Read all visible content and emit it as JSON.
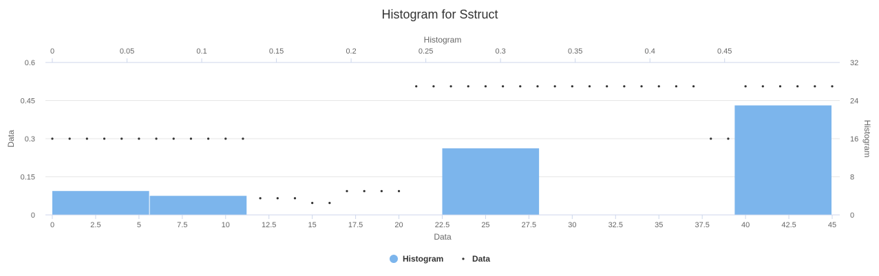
{
  "chart_data": {
    "title": "Histogram for Sstruct",
    "colors": {
      "histogram": "#7cb5ec",
      "data": "#333333"
    },
    "legend_placement": "bottom-center",
    "grid": true,
    "bottom_x": {
      "title": "Data",
      "range": [
        0,
        45
      ],
      "ticks": [
        0,
        2.5,
        5,
        7.5,
        10,
        12.5,
        15,
        17.5,
        20,
        22.5,
        25,
        27.5,
        30,
        32.5,
        35,
        37.5,
        40,
        42.5,
        45
      ],
      "tick_labels": [
        "0",
        "2.5",
        "5",
        "7.5",
        "10",
        "12.5",
        "15",
        "17.5",
        "20",
        "22.5",
        "25",
        "27.5",
        "30",
        "32.5",
        "35",
        "37.5",
        "40",
        "42.5",
        "45"
      ]
    },
    "top_x": {
      "title": "Histogram",
      "range": [
        0,
        0.522
      ],
      "ticks": [
        0,
        0.05,
        0.1,
        0.15,
        0.2,
        0.25,
        0.3,
        0.35,
        0.4,
        0.45
      ],
      "tick_labels": [
        "0",
        "0.05",
        "0.1",
        "0.15",
        "0.2",
        "0.25",
        "0.3",
        "0.35",
        "0.4",
        "0.45"
      ]
    },
    "left_y": {
      "title": "Data",
      "range": [
        0,
        0.6
      ],
      "ticks": [
        0,
        0.15,
        0.3,
        0.45,
        0.6
      ],
      "tick_labels": [
        "0",
        "0.15",
        "0.3",
        "0.45",
        "0.6"
      ]
    },
    "right_y": {
      "title": "Histogram",
      "range": [
        0,
        32
      ],
      "ticks": [
        0,
        8,
        16,
        24,
        32
      ],
      "tick_labels": [
        "0",
        "8",
        "16",
        "24",
        "32"
      ]
    },
    "series": [
      {
        "name": "Histogram",
        "type": "bar",
        "bins": [
          {
            "from": 0,
            "to": 5.625,
            "value": 0.094
          },
          {
            "from": 5.625,
            "to": 11.25,
            "value": 0.075
          },
          {
            "from": 11.25,
            "to": 16.875,
            "value": 0
          },
          {
            "from": 16.875,
            "to": 22.5,
            "value": 0
          },
          {
            "from": 22.5,
            "to": 28.125,
            "value": 0.262
          },
          {
            "from": 28.125,
            "to": 33.75,
            "value": 0
          },
          {
            "from": 33.75,
            "to": 39.375,
            "value": 0
          },
          {
            "from": 39.375,
            "to": 45,
            "value": 0.431
          }
        ]
      },
      {
        "name": "Data",
        "type": "scatter",
        "x": [
          0,
          1,
          2,
          3,
          4,
          5,
          6,
          7,
          8,
          9,
          10,
          11,
          12,
          13,
          14,
          15,
          16,
          17,
          18,
          19,
          20,
          21,
          22,
          23,
          24,
          25,
          26,
          27,
          28,
          29,
          30,
          31,
          32,
          33,
          34,
          35,
          36,
          37,
          38,
          39,
          40,
          41,
          42,
          43,
          44,
          45
        ],
        "y": [
          16,
          16,
          16,
          16,
          16,
          16,
          16,
          16,
          16,
          16,
          16,
          16,
          3.5,
          3.5,
          3.5,
          2.5,
          2.5,
          5,
          5,
          5,
          5,
          27,
          27,
          27,
          27,
          27,
          27,
          27,
          27,
          27,
          27,
          27,
          27,
          27,
          27,
          27,
          27,
          27,
          16,
          16,
          27,
          27,
          27,
          27,
          27,
          27
        ]
      }
    ]
  }
}
